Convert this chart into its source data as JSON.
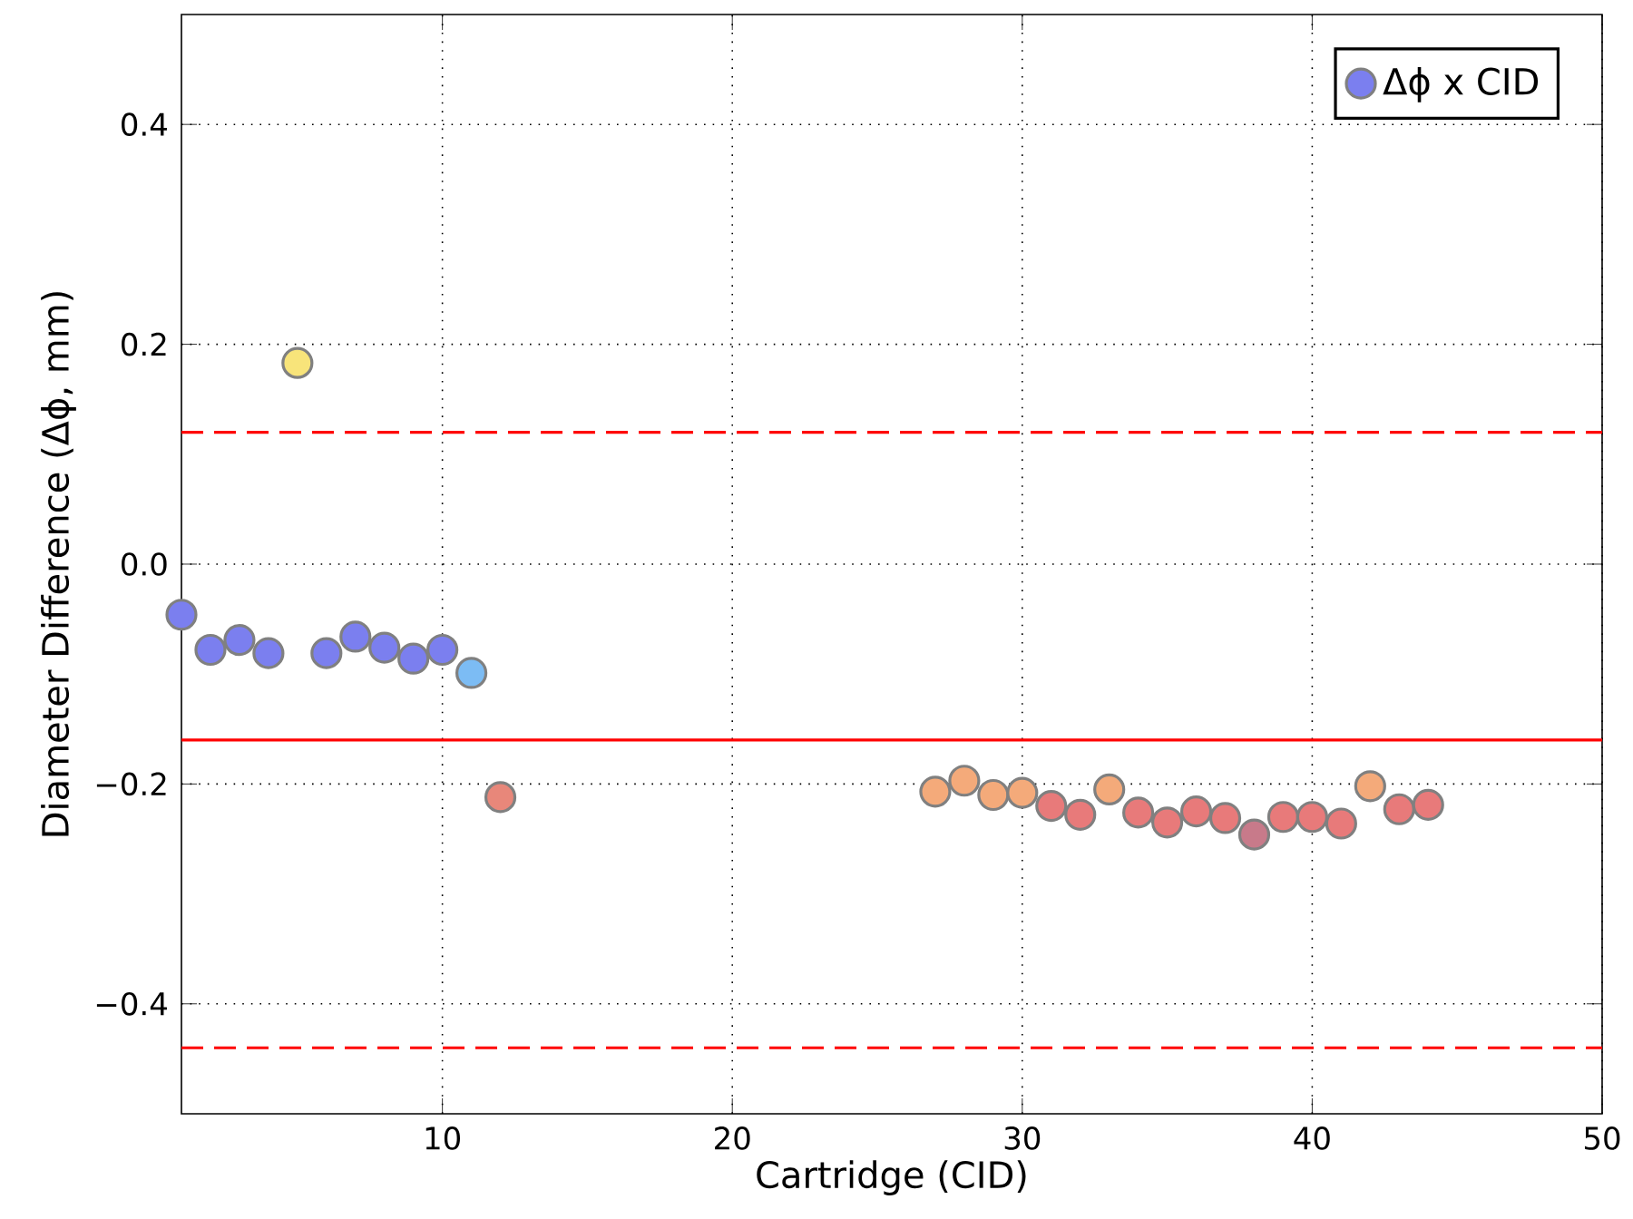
{
  "chart_data": {
    "type": "scatter",
    "xlabel": "Cartridge (CID)",
    "ylabel": "Diameter Difference (Δϕ, mm)",
    "xlim": [
      1,
      50
    ],
    "ylim": [
      -0.5,
      0.5
    ],
    "xticks": [
      10,
      20,
      30,
      40,
      50
    ],
    "yticks": [
      {
        "value": -0.4,
        "label": "−0.4"
      },
      {
        "value": -0.2,
        "label": "−0.2"
      },
      {
        "value": 0.0,
        "label": "0.0"
      },
      {
        "value": 0.2,
        "label": "0.2"
      },
      {
        "value": 0.4,
        "label": "0.4"
      }
    ],
    "grid": true,
    "legend": "top right",
    "marker": "circle",
    "ref_lines": [
      {
        "axis": "y",
        "value": 0.12,
        "color": "#ff0000",
        "line_style": "dashed"
      },
      {
        "axis": "y",
        "value": -0.16,
        "color": "#ff0000",
        "line_style": "solid"
      },
      {
        "axis": "y",
        "value": -0.44,
        "color": "#ff0000",
        "line_style": "dashed"
      }
    ],
    "series": [
      {
        "name": "Δϕ x CID",
        "color": "#7b7fef",
        "x": [
          1,
          2,
          3,
          4,
          5,
          6,
          7,
          8,
          9,
          10,
          11,
          12,
          27,
          28,
          29,
          30,
          31,
          32,
          33,
          34,
          35,
          36,
          37,
          38,
          39,
          40,
          41,
          42,
          43,
          44
        ],
        "values": [
          -0.046,
          -0.078,
          -0.069,
          -0.081,
          0.183,
          -0.081,
          -0.066,
          -0.076,
          -0.086,
          -0.078,
          -0.099,
          -0.212,
          -0.207,
          -0.197,
          -0.21,
          -0.208,
          -0.22,
          -0.228,
          -0.205,
          -0.226,
          -0.235,
          -0.225,
          -0.231,
          -0.246,
          -0.23,
          -0.23,
          -0.236,
          -0.202,
          -0.223,
          -0.219
        ],
        "colors": [
          "#7b7fef",
          "#7b7fef",
          "#7b7fef",
          "#7b7fef",
          "#f8e47a",
          "#7b7fef",
          "#7b7fef",
          "#7b7fef",
          "#7b7fef",
          "#7b7fef",
          "#7cbcf4",
          "#e8877a",
          "#f4aa7a",
          "#f4aa7a",
          "#f4aa7a",
          "#f4aa7a",
          "#e87a7a",
          "#e87a7a",
          "#f4aa7a",
          "#e87a7a",
          "#e87a7a",
          "#e87a7a",
          "#e87a7a",
          "#c87a8a",
          "#e87a7a",
          "#e87a7a",
          "#e87a7a",
          "#f4aa7a",
          "#e87a7a",
          "#e87a7a"
        ]
      }
    ]
  }
}
